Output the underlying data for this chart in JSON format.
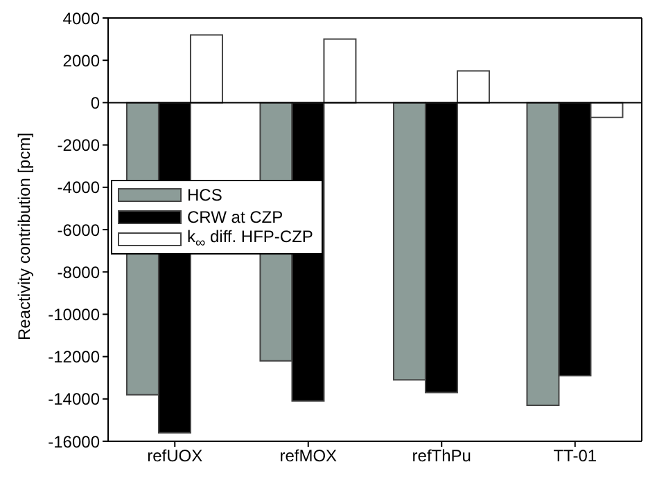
{
  "chart_data": {
    "type": "bar",
    "ylabel": "Reactivity contribution [pcm]",
    "categories": [
      "refUOX",
      "refMOX",
      "refThPu",
      "TT-01"
    ],
    "series": [
      {
        "name": "HCS",
        "color": "#8c9c98",
        "values": [
          -13800,
          -12200,
          -13100,
          -14300
        ]
      },
      {
        "name": "CRW at CZP",
        "color": "#000000",
        "values": [
          -15600,
          -14100,
          -13700,
          -12900
        ]
      },
      {
        "name": "k$_{∞}$ diff. HFP-CZP",
        "color": "#ffffff",
        "values": [
          3200,
          3000,
          1500,
          -700
        ]
      }
    ],
    "ylim": [
      -16000,
      4000
    ],
    "yticks": [
      -16000,
      -14000,
      -12000,
      -10000,
      -8000,
      -6000,
      -4000,
      -2000,
      0,
      2000,
      4000
    ],
    "ref_lines": [
      {
        "axis": "y",
        "value": 0
      }
    ],
    "legend": "left"
  }
}
